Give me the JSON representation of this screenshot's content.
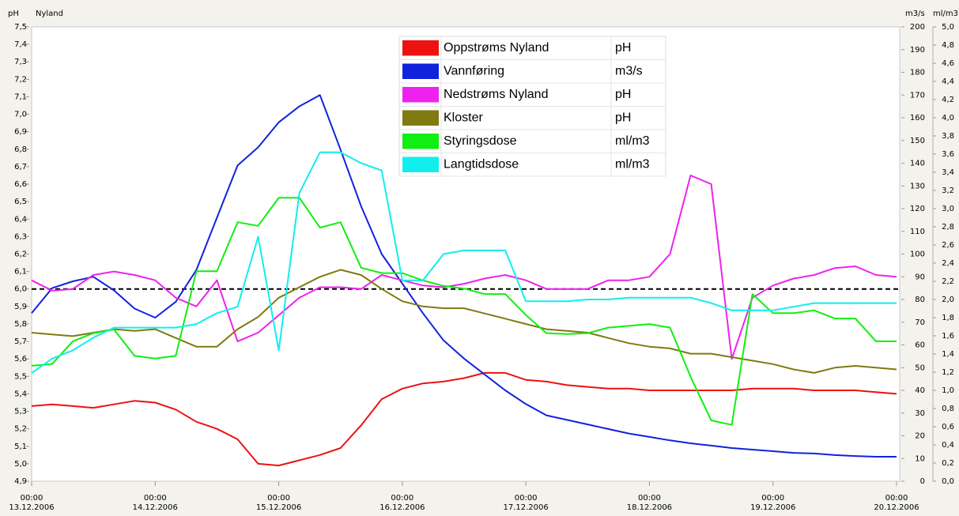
{
  "chart_data": {
    "type": "line",
    "y_title": "pH",
    "y_subtitle": "Nyland",
    "y2_title": "m3/s",
    "y3_title": "ml/m3",
    "x": [
      0,
      4,
      8,
      12,
      16,
      20,
      24,
      28,
      32,
      36,
      40,
      44,
      48,
      52,
      56,
      60,
      64,
      68,
      72,
      76,
      80,
      84,
      88,
      92,
      96,
      100,
      104,
      108,
      112,
      116,
      120,
      124,
      128,
      132,
      136,
      140,
      144,
      148,
      152,
      156,
      160,
      164,
      168
    ],
    "xlim": [
      0,
      168
    ],
    "xticks": [
      {
        "value": 0,
        "label": "00:00\n13.12.2006"
      },
      {
        "value": 24,
        "label": "00:00\n14.12.2006"
      },
      {
        "value": 48,
        "label": "00:00\n15.12.2006"
      },
      {
        "value": 72,
        "label": "00:00\n16.12.2006"
      },
      {
        "value": 96,
        "label": "00:00\n17.12.2006"
      },
      {
        "value": 120,
        "label": "00:00\n18.12.2006"
      },
      {
        "value": 144,
        "label": "00:00\n19.12.2006"
      },
      {
        "value": 168,
        "label": "00:00\n20.12.2006"
      }
    ],
    "ylim": [
      4.9,
      7.5
    ],
    "yticks": [
      {
        "value": 4.9,
        "label": "4,9"
      },
      {
        "value": 5.0,
        "label": "5,0"
      },
      {
        "value": 5.1,
        "label": "5,1"
      },
      {
        "value": 5.2,
        "label": "5,2"
      },
      {
        "value": 5.3,
        "label": "5,3"
      },
      {
        "value": 5.4,
        "label": "5,4"
      },
      {
        "value": 5.5,
        "label": "5,5"
      },
      {
        "value": 5.6,
        "label": "5,6"
      },
      {
        "value": 5.7,
        "label": "5,7"
      },
      {
        "value": 5.8,
        "label": "5,8"
      },
      {
        "value": 5.9,
        "label": "5,9"
      },
      {
        "value": 6.0,
        "label": "6,0"
      },
      {
        "value": 6.1,
        "label": "6,1"
      },
      {
        "value": 6.2,
        "label": "6,2"
      },
      {
        "value": 6.3,
        "label": "6,3"
      },
      {
        "value": 6.4,
        "label": "6,4"
      },
      {
        "value": 6.5,
        "label": "6,5"
      },
      {
        "value": 6.6,
        "label": "6,6"
      },
      {
        "value": 6.7,
        "label": "6,7"
      },
      {
        "value": 6.8,
        "label": "6,8"
      },
      {
        "value": 6.9,
        "label": "6,9"
      },
      {
        "value": 7.0,
        "label": "7,0"
      },
      {
        "value": 7.1,
        "label": "7,1"
      },
      {
        "value": 7.2,
        "label": "7,2"
      },
      {
        "value": 7.3,
        "label": "7,3"
      },
      {
        "value": 7.4,
        "label": "7,4"
      },
      {
        "value": 7.5,
        "label": "7,5"
      }
    ],
    "y2lim": [
      0,
      200
    ],
    "y2ticks": [
      0,
      10,
      20,
      30,
      40,
      50,
      60,
      70,
      80,
      90,
      100,
      110,
      120,
      130,
      140,
      150,
      160,
      170,
      180,
      190,
      200
    ],
    "y3lim": [
      0,
      5.0
    ],
    "y3ticks": [
      {
        "value": 0,
        "label": "0,0"
      },
      {
        "value": 0.2,
        "label": "0,2"
      },
      {
        "value": 0.4,
        "label": "0,4"
      },
      {
        "value": 0.6,
        "label": "0,6"
      },
      {
        "value": 0.8,
        "label": "0,8"
      },
      {
        "value": 1.0,
        "label": "1,0"
      },
      {
        "value": 1.2,
        "label": "1,2"
      },
      {
        "value": 1.4,
        "label": "1,4"
      },
      {
        "value": 1.6,
        "label": "1,6"
      },
      {
        "value": 1.8,
        "label": "1,8"
      },
      {
        "value": 2.0,
        "label": "2,0"
      },
      {
        "value": 2.2,
        "label": "2,2"
      },
      {
        "value": 2.4,
        "label": "2,4"
      },
      {
        "value": 2.6,
        "label": "2,6"
      },
      {
        "value": 2.8,
        "label": "2,8"
      },
      {
        "value": 3.0,
        "label": "3,0"
      },
      {
        "value": 3.2,
        "label": "3,2"
      },
      {
        "value": 3.4,
        "label": "3,4"
      },
      {
        "value": 3.6,
        "label": "3,6"
      },
      {
        "value": 3.8,
        "label": "3,8"
      },
      {
        "value": 4.0,
        "label": "4,0"
      },
      {
        "value": 4.2,
        "label": "4,2"
      },
      {
        "value": 4.4,
        "label": "4,4"
      },
      {
        "value": 4.6,
        "label": "4,6"
      },
      {
        "value": 4.8,
        "label": "4,8"
      },
      {
        "value": 5.0,
        "label": "5,0"
      }
    ],
    "reference_line": {
      "value": 6.0,
      "axis": "y",
      "color": "#000000",
      "dashed": true
    },
    "series": [
      {
        "name": "Oppstrøms Nyland",
        "unit": "pH",
        "axis": "y",
        "color": "#ee1111",
        "values": [
          5.33,
          5.34,
          5.33,
          5.32,
          5.34,
          5.36,
          5.35,
          5.31,
          5.24,
          5.2,
          5.14,
          5.0,
          4.99,
          5.02,
          5.05,
          5.09,
          5.22,
          5.37,
          5.43,
          5.46,
          5.47,
          5.49,
          5.52,
          5.52,
          5.48,
          5.47,
          5.45,
          5.44,
          5.43,
          5.43,
          5.42,
          5.42,
          5.42,
          5.42,
          5.42,
          5.43,
          5.43,
          5.43,
          5.42,
          5.42,
          5.42,
          5.41,
          5.4
        ]
      },
      {
        "name": "Vannføring",
        "unit": "m3/s",
        "axis": "y2",
        "color": "#1122dd",
        "values": [
          74,
          85,
          88,
          90,
          84,
          76,
          72,
          79,
          93,
          116,
          139,
          147,
          158,
          165,
          170,
          146,
          121,
          100,
          87,
          74,
          62,
          54,
          47,
          40,
          34,
          29,
          27,
          25,
          23,
          21,
          19.5,
          18,
          16.7,
          15.7,
          14.6,
          13.9,
          13.2,
          12.5,
          12.2,
          11.5,
          11.1,
          10.8,
          10.8
        ]
      },
      {
        "name": "Nedstrøms Nyland",
        "unit": "pH",
        "axis": "y",
        "color": "#ee22ee",
        "values": [
          6.05,
          5.99,
          6.0,
          6.08,
          6.1,
          6.08,
          6.05,
          5.95,
          5.9,
          6.05,
          5.7,
          5.75,
          5.85,
          5.95,
          6.01,
          6.01,
          6.0,
          6.08,
          6.05,
          6.02,
          6.01,
          6.03,
          6.06,
          6.08,
          6.05,
          6.0,
          6.0,
          6.0,
          6.05,
          6.05,
          6.07,
          6.2,
          6.65,
          6.6,
          5.6,
          5.95,
          6.02,
          6.06,
          6.08,
          6.12,
          6.13,
          6.08,
          6.07
        ]
      },
      {
        "name": "Kloster",
        "unit": "pH",
        "axis": "y",
        "color": "#807a10",
        "values": [
          5.75,
          5.74,
          5.73,
          5.75,
          5.77,
          5.76,
          5.77,
          5.72,
          5.67,
          5.67,
          5.77,
          5.84,
          5.95,
          6.01,
          6.07,
          6.11,
          6.08,
          6.0,
          5.93,
          5.9,
          5.89,
          5.89,
          5.86,
          5.83,
          5.8,
          5.77,
          5.76,
          5.75,
          5.72,
          5.69,
          5.67,
          5.66,
          5.63,
          5.63,
          5.61,
          5.59,
          5.57,
          5.54,
          5.52,
          5.55,
          5.56,
          5.55,
          5.54
        ]
      },
      {
        "name": "Styringsdose",
        "unit": "ml/m3",
        "axis": "y3",
        "color": "#11ee11",
        "values": [
          1.27,
          1.29,
          1.54,
          1.63,
          1.67,
          1.38,
          1.35,
          1.38,
          2.31,
          2.31,
          2.85,
          2.81,
          3.12,
          3.12,
          2.79,
          2.85,
          2.35,
          2.29,
          2.29,
          2.21,
          2.15,
          2.12,
          2.06,
          2.06,
          1.83,
          1.63,
          1.62,
          1.63,
          1.69,
          1.71,
          1.73,
          1.69,
          1.15,
          0.67,
          0.62,
          2.06,
          1.85,
          1.85,
          1.88,
          1.79,
          1.79,
          1.54,
          1.54
        ]
      },
      {
        "name": "Langtidsdose",
        "unit": "ml/m3",
        "axis": "y3",
        "color": "#11eeee",
        "values": [
          1.19,
          1.35,
          1.44,
          1.58,
          1.69,
          1.69,
          1.69,
          1.69,
          1.73,
          1.85,
          1.92,
          2.69,
          1.44,
          3.17,
          3.62,
          3.62,
          3.5,
          3.42,
          2.21,
          2.21,
          2.5,
          2.54,
          2.54,
          2.54,
          1.98,
          1.98,
          1.98,
          2.0,
          2.0,
          2.02,
          2.02,
          2.02,
          2.02,
          1.96,
          1.88,
          1.88,
          1.88,
          1.92,
          1.96,
          1.96,
          1.96,
          1.96,
          1.96
        ]
      }
    ]
  }
}
